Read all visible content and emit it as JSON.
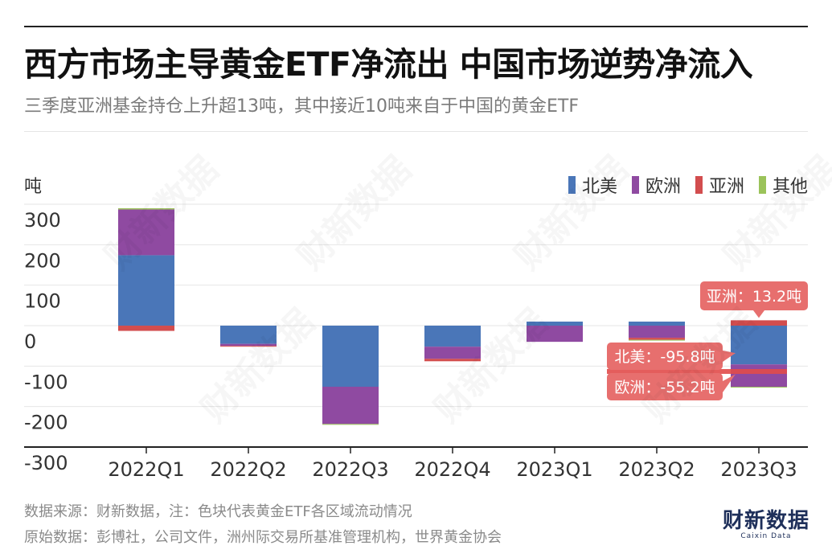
{
  "header": {
    "title": "西方市场主导黄金ETF净流出  中国市场逆势净流入",
    "subtitle": "三季度亚洲基金持仓上升超13吨，其中接近10吨来自于中国的黄金ETF"
  },
  "watermark": "财新数据",
  "chart_data": {
    "type": "bar",
    "stacked": true,
    "title": "西方市场主导黄金ETF净流出  中国市场逆势净流入",
    "ylabel": "吨",
    "ylim": [
      -300,
      300
    ],
    "yticks": [
      300,
      200,
      100,
      0,
      -100,
      -200,
      -300
    ],
    "grid": true,
    "legend_position": "top-right",
    "categories": [
      "2022Q1",
      "2022Q2",
      "2022Q3",
      "2022Q4",
      "2023Q1",
      "2023Q2",
      "2023Q3"
    ],
    "series": [
      {
        "name": "北美",
        "color": "#4a76b8",
        "values": [
          174,
          -45,
          -151,
          -52,
          10,
          10,
          -95.8
        ]
      },
      {
        "name": "欧洲",
        "color": "#8f4aa1",
        "values": [
          113,
          -5,
          -92,
          -30,
          -40,
          -30,
          -55.2
        ]
      },
      {
        "name": "亚洲",
        "color": "#d24d4e",
        "values": [
          -13,
          -2,
          0,
          -6,
          0,
          -5,
          13.2
        ]
      },
      {
        "name": "其他",
        "color": "#9bc35a",
        "values": [
          3,
          0,
          -2,
          0,
          0,
          -1,
          -2
        ]
      }
    ],
    "annotations": [
      {
        "text": "亚洲：13.2吨",
        "category": "2023Q3",
        "series": "亚洲"
      },
      {
        "text": "北美：-95.8吨",
        "category": "2023Q3",
        "series": "北美"
      },
      {
        "text": "欧洲：-55.2吨",
        "category": "2023Q3",
        "series": "欧洲"
      }
    ]
  },
  "footer": {
    "source": "数据来源：财新数据，注：色块代表黄金ETF各区域流动情况",
    "original": "原始数据：彭博社，公司文件，洲州际交易所基准管理机构，世界黄金协会"
  },
  "brand": {
    "cn": "财新数据",
    "en": "Caixin Data"
  }
}
